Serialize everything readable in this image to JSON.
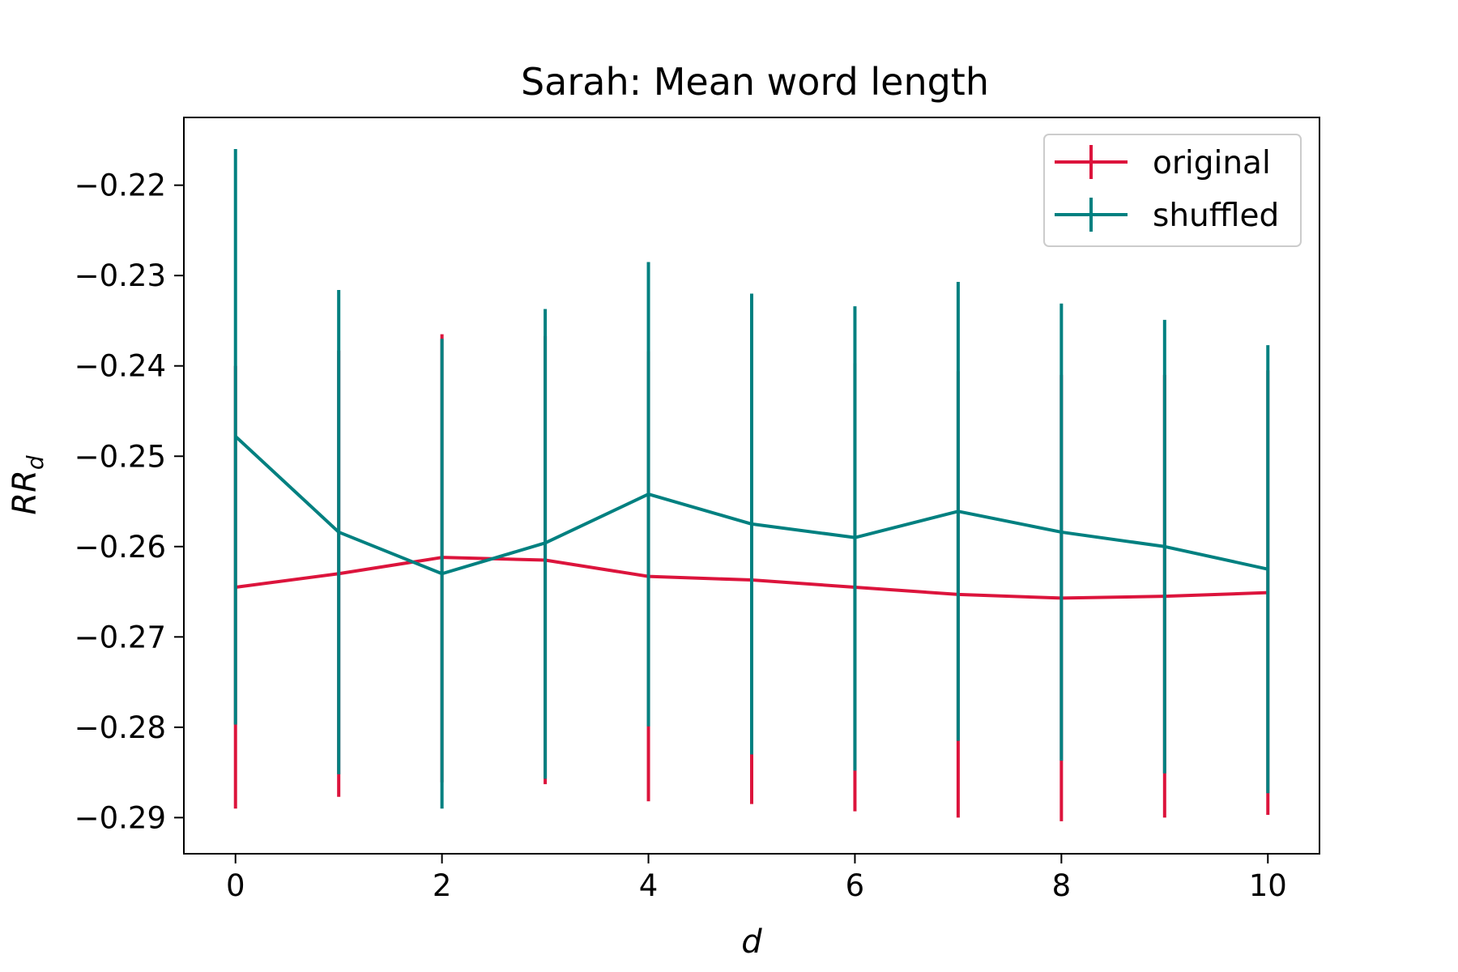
{
  "chart_data": {
    "type": "line",
    "title": "Sarah: Mean word length",
    "xlabel": "d",
    "ylabel_main": "RR",
    "ylabel_sub": "d",
    "xlim": [
      -0.5,
      10.5
    ],
    "ylim": [
      -0.294,
      -0.2125
    ],
    "x_ticks": [
      0,
      2,
      4,
      6,
      8,
      10
    ],
    "y_ticks": [
      -0.22,
      -0.23,
      -0.24,
      -0.25,
      -0.26,
      -0.27,
      -0.28,
      -0.29
    ],
    "legend": "top-right",
    "grid": false,
    "x": [
      0,
      1,
      2,
      3,
      4,
      5,
      6,
      7,
      8,
      9,
      10
    ],
    "series": [
      {
        "name": "original",
        "color": "#dc143c",
        "values": [
          -0.2645,
          -0.263,
          -0.2612,
          -0.2615,
          -0.2633,
          -0.2637,
          -0.2645,
          -0.2653,
          -0.2657,
          -0.2655,
          -0.2651
        ],
        "err_low": [
          -0.289,
          -0.2877,
          -0.2861,
          -0.2863,
          -0.2882,
          -0.2885,
          -0.2893,
          -0.29,
          -0.2904,
          -0.29,
          -0.2897
        ],
        "err_high": [
          -0.24,
          -0.2383,
          -0.2365,
          -0.2367,
          -0.2384,
          -0.2389,
          -0.2397,
          -0.2406,
          -0.241,
          -0.241,
          -0.2405
        ]
      },
      {
        "name": "shuffled",
        "color": "#008080",
        "values": [
          -0.2478,
          -0.2584,
          -0.263,
          -0.2596,
          -0.2542,
          -0.2575,
          -0.259,
          -0.2561,
          -0.2584,
          -0.26,
          -0.2625
        ],
        "err_low": [
          -0.2797,
          -0.2852,
          -0.289,
          -0.2857,
          -0.2799,
          -0.283,
          -0.2848,
          -0.2815,
          -0.2837,
          -0.2851,
          -0.2873
        ],
        "err_high": [
          -0.216,
          -0.2316,
          -0.237,
          -0.2337,
          -0.2285,
          -0.232,
          -0.2334,
          -0.2307,
          -0.2331,
          -0.2349,
          -0.2377
        ]
      }
    ]
  }
}
